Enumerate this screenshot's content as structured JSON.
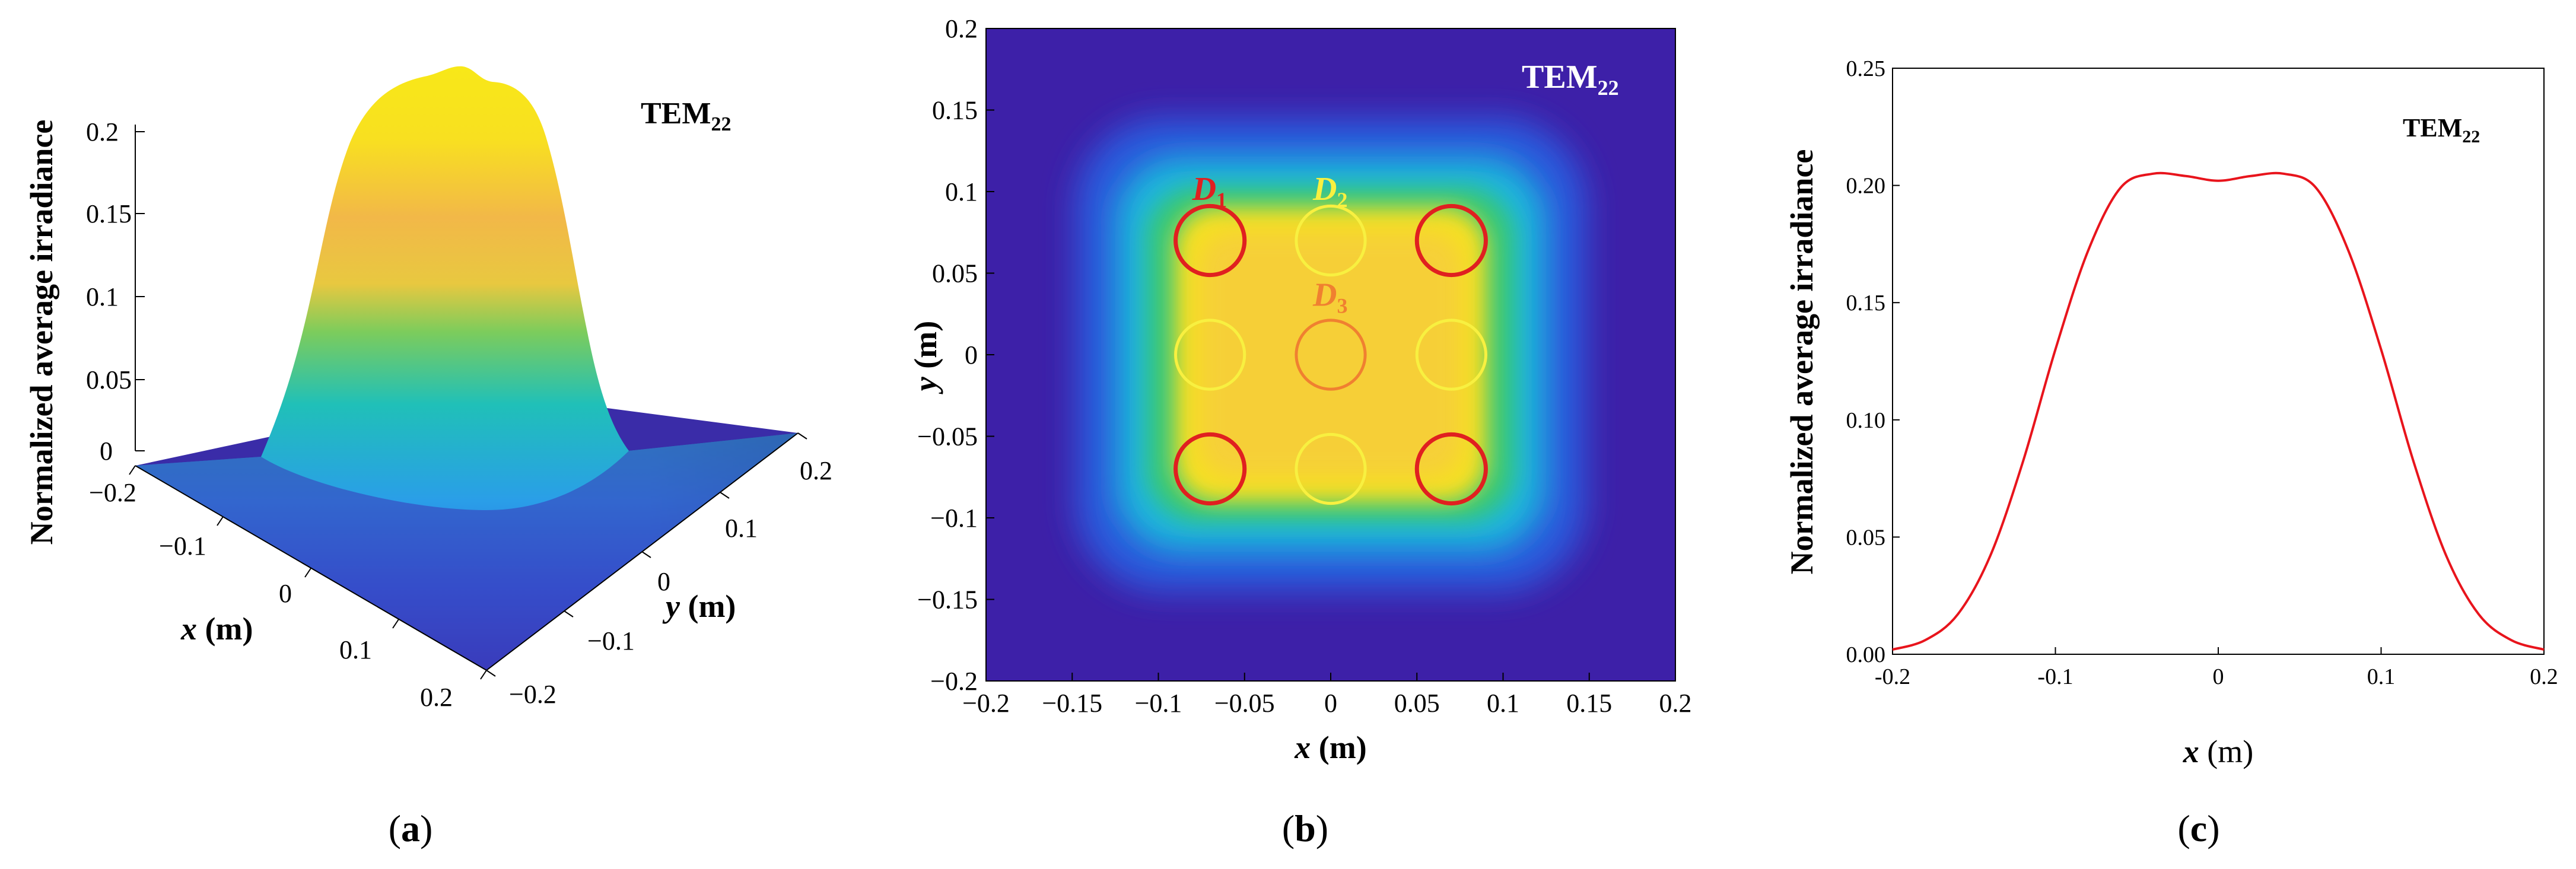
{
  "chart_data": [
    {
      "type": "surface",
      "panel": "(a)",
      "panel_letter": "a",
      "title": "TEM",
      "title_sub": "22",
      "zlabel": "Normalized average irradiance",
      "xlabel_var": "x",
      "xlabel_unit": " (m)",
      "ylabel_var": "y",
      "ylabel_unit": " (m)",
      "z_ticks": [
        "0",
        "0.05",
        "0.1",
        "0.15",
        "0.2"
      ],
      "z_tick_values": [
        0,
        0.05,
        0.1,
        0.15,
        0.2
      ],
      "x_ticks": [
        "−0.2",
        "−0.1",
        "0",
        "0.1",
        "0.2"
      ],
      "y_ticks": [
        "−0.2",
        "−0.1",
        "0",
        "0.1",
        "0.2"
      ],
      "xlim": [
        -0.2,
        0.2
      ],
      "ylim": [
        -0.2,
        0.2
      ],
      "zlim": [
        0,
        0.2
      ],
      "peak_value": 0.22
    },
    {
      "type": "heatmap",
      "panel": "(b)",
      "panel_letter": "b",
      "title": "TEM",
      "title_sub": "22",
      "xlabel_var": "x",
      "xlabel_unit": " (m)",
      "ylabel_var": "y",
      "ylabel_unit": " (m)",
      "x_ticks": [
        "−0.2",
        "−0.15",
        "−0.1",
        "−0.05",
        "0",
        "0.05",
        "0.1",
        "0.15",
        "0.2"
      ],
      "x_tick_values": [
        -0.2,
        -0.15,
        -0.1,
        -0.05,
        0,
        0.05,
        0.1,
        0.15,
        0.2
      ],
      "y_ticks": [
        "0.2",
        "0.15",
        "0.1",
        "0.05",
        "0",
        "−0.05",
        "−0.1",
        "−0.15",
        "−0.2"
      ],
      "y_tick_values": [
        0.2,
        0.15,
        0.1,
        0.05,
        0,
        -0.05,
        -0.1,
        -0.15,
        -0.2
      ],
      "xlim": [
        -0.2,
        0.2
      ],
      "ylim": [
        -0.2,
        0.2
      ],
      "colormap": [
        "#3d20a8",
        "#2f6ae8",
        "#18b8d8",
        "#3fd07c",
        "#c8e02c",
        "#f8e818",
        "#f6c43a"
      ],
      "plateau_halfwidth": 0.1,
      "detector_radius": 0.02,
      "detectors": [
        {
          "x": -0.07,
          "y": 0.07,
          "group": "D1",
          "color": "#e02020"
        },
        {
          "x": 0.0,
          "y": 0.07,
          "group": "D2",
          "color": "#f8f040"
        },
        {
          "x": 0.07,
          "y": 0.07,
          "group": "D1",
          "color": "#e02020"
        },
        {
          "x": -0.07,
          "y": 0.0,
          "group": "D2",
          "color": "#f8f040"
        },
        {
          "x": 0.0,
          "y": 0.0,
          "group": "D3",
          "color": "#f08030"
        },
        {
          "x": 0.07,
          "y": 0.0,
          "group": "D2",
          "color": "#f8f040"
        },
        {
          "x": -0.07,
          "y": -0.07,
          "group": "D1",
          "color": "#e02020"
        },
        {
          "x": 0.0,
          "y": -0.07,
          "group": "D2",
          "color": "#f8f040"
        },
        {
          "x": 0.07,
          "y": -0.07,
          "group": "D1",
          "color": "#e02020"
        }
      ],
      "detector_labels": [
        {
          "main": "D",
          "sub": "1",
          "x": -0.07,
          "y": 0.095,
          "color": "#e02020"
        },
        {
          "main": "D",
          "sub": "2",
          "x": 0.0,
          "y": 0.095,
          "color": "#f8f040"
        },
        {
          "main": "D",
          "sub": "3",
          "x": 0.0,
          "y": 0.03,
          "color": "#f08030"
        }
      ]
    },
    {
      "type": "line",
      "panel": "(c)",
      "panel_letter": "c",
      "title": "TEM",
      "title_sub": "22",
      "ylabel": "Normalized average irradiance",
      "xlabel_var": "x",
      "xlabel_unit": " (m)",
      "x_ticks": [
        "-0.2",
        "-0.1",
        "0",
        "0.1",
        "0.2"
      ],
      "x_tick_values": [
        -0.2,
        -0.1,
        0,
        0.1,
        0.2
      ],
      "y_ticks": [
        "0.00",
        "0.05",
        "0.10",
        "0.15",
        "0.20",
        "0.25"
      ],
      "y_tick_values": [
        0,
        0.05,
        0.1,
        0.15,
        0.2,
        0.25
      ],
      "xlim": [
        -0.2,
        0.2
      ],
      "ylim": [
        0,
        0.25
      ],
      "series": [
        {
          "name": "TEM22",
          "color": "#e8141c",
          "x": [
            -0.2,
            -0.18,
            -0.16,
            -0.14,
            -0.12,
            -0.1,
            -0.08,
            -0.06,
            -0.04,
            -0.02,
            0.0,
            0.02,
            0.04,
            0.06,
            0.08,
            0.1,
            0.12,
            0.14,
            0.16,
            0.18,
            0.2
          ],
          "y": [
            0.002,
            0.006,
            0.017,
            0.042,
            0.082,
            0.13,
            0.172,
            0.199,
            0.205,
            0.204,
            0.202,
            0.204,
            0.205,
            0.199,
            0.172,
            0.13,
            0.082,
            0.042,
            0.017,
            0.006,
            0.002
          ]
        }
      ]
    }
  ]
}
